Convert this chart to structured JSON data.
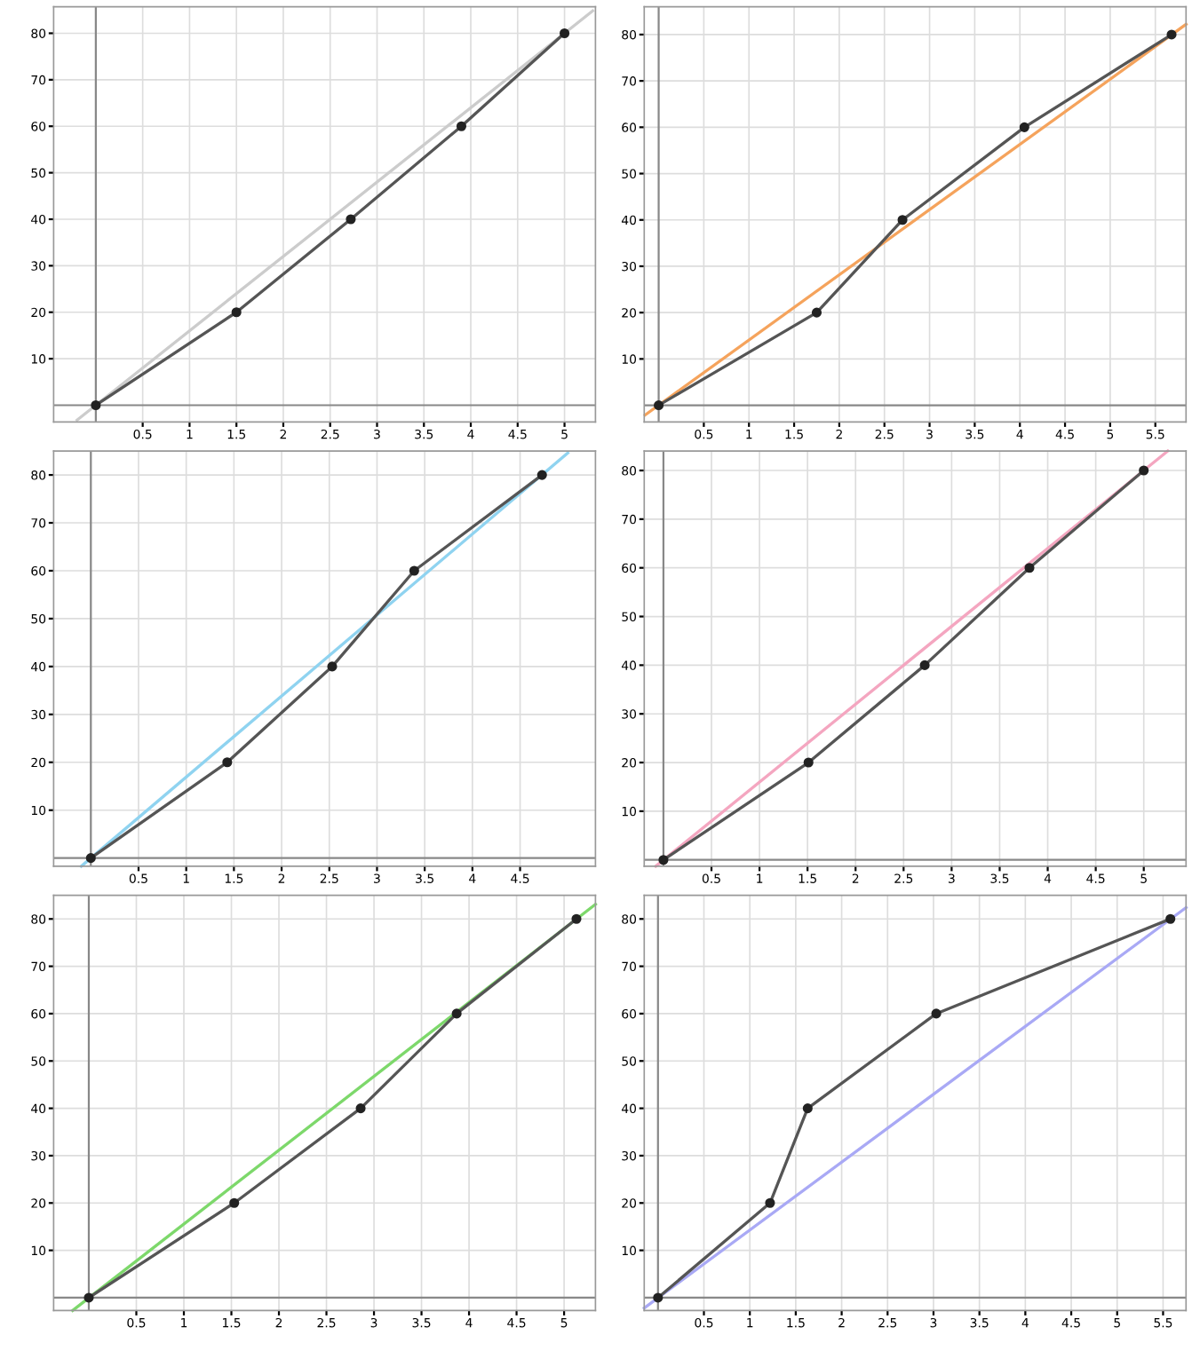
{
  "chart_data": [
    {
      "type": "line",
      "grid": true,
      "xlim": [
        -0.45,
        5.33
      ],
      "ylim": [
        -3.6,
        85.7
      ],
      "xticks": [
        0.5,
        1,
        1.5,
        2,
        2.5,
        3,
        3.5,
        4,
        4.5,
        5
      ],
      "yticks": [
        10,
        20,
        30,
        40,
        50,
        60,
        70,
        80
      ],
      "series": [
        {
          "color": "#cccccc",
          "marker": "none",
          "x": [
            -0.2,
            5.3
          ],
          "values": [
            -3.2,
            84.8
          ]
        },
        {
          "color": "#555555",
          "marker": "circle",
          "x": [
            0,
            1.5,
            2.72,
            3.9,
            5.0
          ],
          "values": [
            0,
            20,
            40,
            60,
            80
          ]
        }
      ]
    },
    {
      "type": "line",
      "grid": true,
      "xlim": [
        -0.16,
        5.84
      ],
      "ylim": [
        -3.6,
        86
      ],
      "xticks": [
        0.5,
        1,
        1.5,
        2,
        2.5,
        3,
        3.5,
        4,
        4.5,
        5,
        5.5
      ],
      "yticks": [
        10,
        20,
        30,
        40,
        50,
        60,
        70,
        80
      ],
      "series": [
        {
          "color": "#f5a35c",
          "marker": "none",
          "x": [
            -0.15,
            5.84
          ],
          "values": [
            -2.1,
            82.2
          ]
        },
        {
          "color": "#555555",
          "marker": "circle",
          "x": [
            0,
            1.75,
            2.7,
            4.05,
            5.68
          ],
          "values": [
            0,
            20,
            40,
            60,
            80
          ]
        }
      ]
    },
    {
      "type": "line",
      "grid": true,
      "xlim": [
        -0.39,
        5.29
      ],
      "ylim": [
        -1.7,
        85
      ],
      "xticks": [
        0.5,
        1,
        1.5,
        2,
        2.5,
        3,
        3.5,
        4,
        4.5
      ],
      "yticks": [
        10,
        20,
        30,
        40,
        50,
        60,
        70,
        80
      ],
      "series": [
        {
          "color": "#8fd3f0",
          "marker": "none",
          "x": [
            -0.1,
            5.0
          ],
          "values": [
            -1.7,
            84.6
          ]
        },
        {
          "color": "#555555",
          "marker": "circle",
          "x": [
            0,
            1.43,
            2.53,
            3.39,
            4.73
          ],
          "values": [
            0,
            20,
            40,
            60,
            80
          ]
        }
      ]
    },
    {
      "type": "line",
      "grid": true,
      "xlim": [
        -0.2,
        5.44
      ],
      "ylim": [
        -1.3,
        84
      ],
      "xticks": [
        0.5,
        1,
        1.5,
        2,
        2.5,
        3,
        3.5,
        4,
        4.5,
        5
      ],
      "yticks": [
        10,
        20,
        30,
        40,
        50,
        60,
        70,
        80
      ],
      "series": [
        {
          "color": "#f4a6c0",
          "marker": "none",
          "x": [
            -0.08,
            5.25
          ],
          "values": [
            -1.3,
            84
          ]
        },
        {
          "color": "#555555",
          "marker": "circle",
          "x": [
            0,
            1.51,
            2.72,
            3.81,
            5.0
          ],
          "values": [
            0,
            20,
            40,
            60,
            80
          ]
        }
      ]
    },
    {
      "type": "line",
      "grid": true,
      "xlim": [
        -0.37,
        5.33
      ],
      "ylim": [
        -2.7,
        85
      ],
      "xticks": [
        0.5,
        1,
        1.5,
        2,
        2.5,
        3,
        3.5,
        4,
        4.5,
        5
      ],
      "yticks": [
        10,
        20,
        30,
        40,
        50,
        60,
        70,
        80
      ],
      "series": [
        {
          "color": "#7dd86b",
          "marker": "none",
          "x": [
            -0.17,
            5.33
          ],
          "values": [
            -2.7,
            83.1
          ]
        },
        {
          "color": "#555555",
          "marker": "circle",
          "x": [
            0,
            1.53,
            2.86,
            3.87,
            5.13
          ],
          "values": [
            0,
            20,
            40,
            60,
            80
          ]
        }
      ]
    },
    {
      "type": "line",
      "grid": true,
      "xlim": [
        -0.15,
        5.75
      ],
      "ylim": [
        -2.7,
        85
      ],
      "xticks": [
        0.5,
        1,
        1.5,
        2,
        2.5,
        3,
        3.5,
        4,
        4.5,
        5,
        5.5
      ],
      "yticks": [
        10,
        20,
        30,
        40,
        50,
        60,
        70,
        80
      ],
      "series": [
        {
          "color": "#a9a9f5",
          "marker": "none",
          "x": [
            -0.15,
            5.75
          ],
          "values": [
            -2.2,
            82.4
          ]
        },
        {
          "color": "#555555",
          "marker": "circle",
          "x": [
            0,
            1.22,
            1.63,
            3.03,
            5.58
          ],
          "values": [
            0,
            20,
            40,
            60,
            80
          ]
        }
      ]
    }
  ]
}
